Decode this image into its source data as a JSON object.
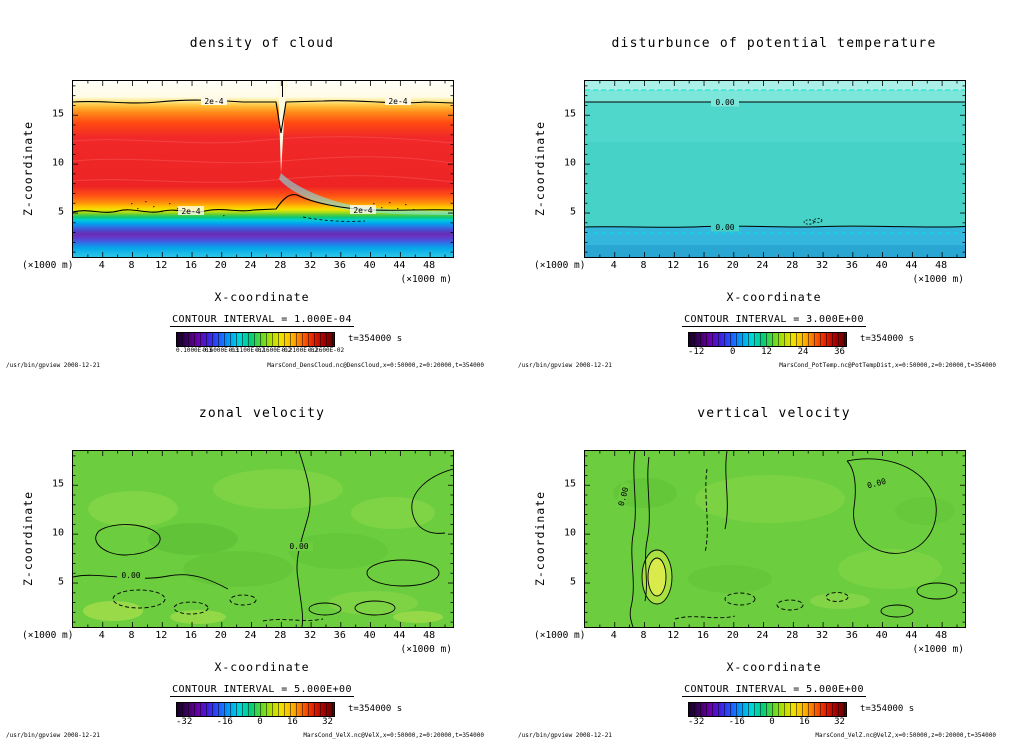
{
  "colors": {
    "background": "#ffffff",
    "ink": "#000000"
  },
  "panels": [
    {
      "title": "density of cloud",
      "y_axis_label": "Z-coordinate",
      "x_axis_label": "X-coordinate",
      "y_unit": "(×1000 m)",
      "x_unit": "(×1000 m)",
      "x_ticks": [
        "4",
        "8",
        "12",
        "16",
        "20",
        "24",
        "28",
        "32",
        "36",
        "40",
        "44",
        "48"
      ],
      "y_ticks": [
        "5",
        "10",
        "15"
      ],
      "contour_interval": "CONTOUR INTERVAL =  1.000E-04",
      "time_label": "t=354000 s",
      "colorbar_labels": [
        "0.1000E-03",
        "0.6000E-03",
        "0.1100E-02",
        "0.1600E-02",
        "0.2100E-02",
        "0.2600E-02"
      ],
      "contour_labels": [
        "2e-4",
        "2e-4",
        "2e-4",
        "2e-4"
      ],
      "footer_left": "/usr/bin/gpview  2008-12-21",
      "footer_right": "MarsCond_DensCloud.nc@DensCloud,x=0:50000,z=0:20000,t=354000"
    },
    {
      "title": "disturbunce of potential temperature",
      "y_axis_label": "Z-coordinate",
      "x_axis_label": "X-coordinate",
      "y_unit": "(×1000 m)",
      "x_unit": "(×1000 m)",
      "x_ticks": [
        "4",
        "8",
        "12",
        "16",
        "20",
        "24",
        "28",
        "32",
        "36",
        "40",
        "44",
        "48"
      ],
      "y_ticks": [
        "5",
        "10",
        "15"
      ],
      "contour_interval": "CONTOUR INTERVAL =  3.000E+00",
      "time_label": "t=354000 s",
      "colorbar_labels": [
        "-12",
        "0",
        "12",
        "24",
        "36"
      ],
      "contour_labels": [
        "0.00",
        "0.00"
      ],
      "footer_left": "/usr/bin/gpview  2008-12-21",
      "footer_right": "MarsCond_PotTemp.nc@PotTempDist,x=0:50000,z=0:20000,t=354000"
    },
    {
      "title": "zonal velocity",
      "y_axis_label": "Z-coordinate",
      "x_axis_label": "X-coordinate",
      "y_unit": "(×1000 m)",
      "x_unit": "(×1000 m)",
      "x_ticks": [
        "4",
        "8",
        "12",
        "16",
        "20",
        "24",
        "28",
        "32",
        "36",
        "40",
        "44",
        "48"
      ],
      "y_ticks": [
        "5",
        "10",
        "15"
      ],
      "contour_interval": "CONTOUR INTERVAL =  5.000E+00",
      "time_label": "t=354000 s",
      "colorbar_labels": [
        "-32",
        "-16",
        "0",
        "16",
        "32"
      ],
      "contour_labels": [
        "0.00",
        "0.00"
      ],
      "footer_left": "/usr/bin/gpview  2008-12-21",
      "footer_right": "MarsCond_VelX.nc@VelX,x=0:50000,z=0:20000,t=354000"
    },
    {
      "title": "vertical velocity",
      "y_axis_label": "Z-coordinate",
      "x_axis_label": "X-coordinate",
      "y_unit": "(×1000 m)",
      "x_unit": "(×1000 m)",
      "x_ticks": [
        "4",
        "8",
        "12",
        "16",
        "20",
        "24",
        "28",
        "32",
        "36",
        "40",
        "44",
        "48"
      ],
      "y_ticks": [
        "5",
        "10",
        "15"
      ],
      "contour_interval": "CONTOUR INTERVAL =  5.000E+00",
      "time_label": "t=354000 s",
      "colorbar_labels": [
        "-32",
        "-16",
        "0",
        "16",
        "32"
      ],
      "contour_labels": [
        "0.00",
        "0.00"
      ],
      "footer_left": "/usr/bin/gpview  2008-12-21",
      "footer_right": "MarsCond_VelZ.nc@VelZ,x=0:50000,z=0:20000,t=354000"
    }
  ],
  "chart_data": [
    {
      "type": "heatmap",
      "title": "density of cloud",
      "xlabel": "X-coordinate (×1000 m)",
      "ylabel": "Z-coordinate (×1000 m)",
      "xlim": [
        0,
        51
      ],
      "ylim": [
        0.5,
        18.5
      ],
      "x_ticks": [
        4,
        8,
        12,
        16,
        20,
        24,
        28,
        32,
        36,
        40,
        44,
        48
      ],
      "y_ticks": [
        5,
        10,
        15
      ],
      "contour_interval": "1.000E-04",
      "labeled_contours": [
        "2e-4"
      ],
      "colorbar_ticks": [
        "0.1000E-03",
        "0.6000E-03",
        "0.1100E-02",
        "0.1600E-02",
        "0.2100E-02",
        "0.2600E-02"
      ],
      "time": "t=354000 s",
      "legend_position": "bottom",
      "field_summary": "High cloud density (red fill) spans z≈6-15 at all x; 2e-4 contour near z≈16.5 above and z≈5.3 below; below that, yellow-green-cyan-blue-purple layers to z≈1; narrow low-density notch cuts down through the layer at x≈28."
    },
    {
      "type": "heatmap",
      "title": "disturbunce of potential temperature",
      "xlabel": "X-coordinate (×1000 m)",
      "ylabel": "Z-coordinate (×1000 m)",
      "xlim": [
        0,
        51
      ],
      "ylim": [
        0.5,
        18.5
      ],
      "x_ticks": [
        4,
        8,
        12,
        16,
        20,
        24,
        28,
        32,
        36,
        40,
        44,
        48
      ],
      "y_ticks": [
        5,
        10,
        15
      ],
      "contour_interval": "3.000E+00",
      "labeled_contours": [
        "0.00",
        "0.00"
      ],
      "colorbar_ticks": [
        -12,
        0,
        12,
        24,
        36
      ],
      "time": "t=354000 s",
      "legend_position": "bottom",
      "field_summary": "Nearly uniform field near zero (turquoise); 0.00 contour lines run horizontally near z≈17.3 (lighter cyan band above) and z≈3.5 (bluer band below)."
    },
    {
      "type": "heatmap",
      "title": "zonal velocity",
      "xlabel": "X-coordinate (×1000 m)",
      "ylabel": "Z-coordinate (×1000 m)",
      "xlim": [
        0,
        51
      ],
      "ylim": [
        0.5,
        18.5
      ],
      "x_ticks": [
        4,
        8,
        12,
        16,
        20,
        24,
        28,
        32,
        36,
        40,
        44,
        48
      ],
      "y_ticks": [
        5,
        10,
        15
      ],
      "contour_interval": "5.000E+00",
      "labeled_contours": [
        "0.00",
        "0.00"
      ],
      "colorbar_ticks": [
        -32,
        -16,
        0,
        16,
        32
      ],
      "time": "t=354000 s",
      "legend_position": "bottom",
      "field_summary": "Weak velocity field (green) with a 0.00 contour snaking from top-center (x≈29) to the bottom, closed contours near x≈5-10/z≈9 and x≈43/z≈6, and dashed negative contours in the lower-left."
    },
    {
      "type": "heatmap",
      "title": "vertical velocity",
      "xlabel": "X-coordinate (×1000 m)",
      "ylabel": "Z-coordinate (×1000 m)",
      "xlim": [
        0,
        51
      ],
      "ylim": [
        0.5,
        18.5
      ],
      "x_ticks": [
        4,
        8,
        12,
        16,
        20,
        24,
        28,
        32,
        36,
        40,
        44,
        48
      ],
      "y_ticks": [
        5,
        10,
        15
      ],
      "contour_interval": "5.000E+00",
      "labeled_contours": [
        "0.00",
        "0.00"
      ],
      "colorbar_ticks": [
        -32,
        -16,
        0,
        16,
        32
      ],
      "time": "t=354000 s",
      "legend_position": "bottom",
      "field_summary": "Mostly weak field (green); elongated vertical 0.00 contours near x≈7-9 with a local positive maximum (yellow core) at x≈9/z≈5, a large closed contour near x≈38-46/z≈9-15, and scattered dashed cells near the surface."
    }
  ]
}
